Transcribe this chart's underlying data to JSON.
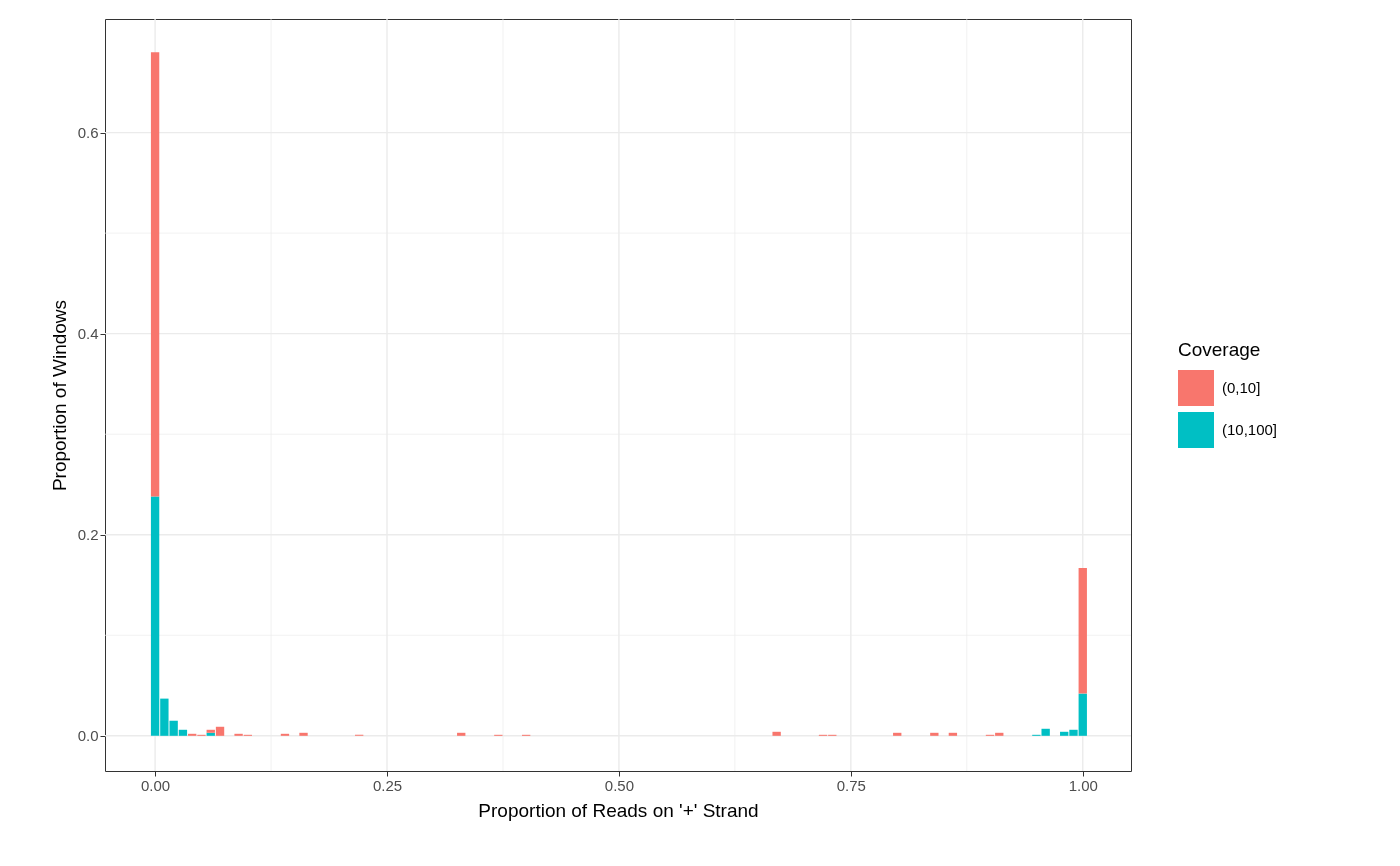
{
  "chart_data": {
    "type": "bar",
    "xlabel": "Proportion of Reads on '+' Strand",
    "ylabel": "Proportion of Windows",
    "legend_title": "Coverage",
    "stacked": true,
    "legend": "right",
    "grid": true,
    "x": [
      0,
      0.01,
      0.02,
      0.03,
      0.04,
      0.05,
      0.06,
      0.07,
      0.08,
      0.09,
      0.1,
      0.11,
      0.12,
      0.13,
      0.14,
      0.15,
      0.16,
      0.17,
      0.18,
      0.19,
      0.2,
      0.21,
      0.22,
      0.23,
      0.24,
      0.25,
      0.26,
      0.27,
      0.28,
      0.29,
      0.3,
      0.31,
      0.32,
      0.33,
      0.34,
      0.35,
      0.36,
      0.37,
      0.38,
      0.39,
      0.4,
      0.41,
      0.42,
      0.43,
      0.44,
      0.45,
      0.46,
      0.47,
      0.48,
      0.49,
      0.5,
      0.51,
      0.52,
      0.53,
      0.54,
      0.55,
      0.56,
      0.57,
      0.58,
      0.59,
      0.6,
      0.61,
      0.62,
      0.63,
      0.64,
      0.65,
      0.66,
      0.67,
      0.68,
      0.69,
      0.7,
      0.71,
      0.72,
      0.73,
      0.74,
      0.75,
      0.76,
      0.77,
      0.78,
      0.79,
      0.8,
      0.81,
      0.82,
      0.83,
      0.84,
      0.85,
      0.86,
      0.87,
      0.88,
      0.89,
      0.9,
      0.91,
      0.92,
      0.93,
      0.94,
      0.95,
      0.96,
      0.97,
      0.98,
      0.99,
      1
    ],
    "series": [
      {
        "name": "(10,100]",
        "color": "#00bfc4",
        "values": [
          0.238,
          0.037,
          0.015,
          0.006,
          0,
          0,
          0.003,
          0,
          0,
          0,
          0,
          0,
          0,
          0,
          0,
          0,
          0,
          0,
          0,
          0,
          0,
          0,
          0,
          0,
          0,
          0,
          0,
          0,
          0,
          0,
          0,
          0,
          0,
          0,
          0,
          0,
          0,
          0,
          0,
          0,
          0,
          0,
          0,
          0,
          0,
          0,
          0,
          0,
          0,
          0,
          0,
          0,
          0,
          0,
          0,
          0,
          0,
          0,
          0,
          0,
          0,
          0,
          0,
          0,
          0,
          0,
          0,
          0,
          0,
          0,
          0,
          0,
          0,
          0,
          0,
          0,
          0,
          0,
          0,
          0,
          0,
          0,
          0,
          0,
          0,
          0,
          0,
          0,
          0,
          0,
          0,
          0,
          0,
          0,
          0,
          0.001,
          0.007,
          0,
          0.004,
          0.006,
          0.042
        ]
      },
      {
        "name": "(0,10]",
        "color": "#f8766d",
        "values": [
          0.442,
          0,
          0,
          0,
          0.002,
          0.001,
          0.003,
          0.009,
          0,
          0.002,
          0.001,
          0,
          0,
          0,
          0.002,
          0,
          0.003,
          0,
          0,
          0,
          0,
          0,
          0.001,
          0,
          0,
          0,
          0,
          0,
          0,
          0,
          0,
          0,
          0,
          0.003,
          0,
          0,
          0,
          0.001,
          0,
          0,
          0.001,
          0,
          0,
          0,
          0,
          0,
          0,
          0,
          0,
          0,
          0,
          0,
          0,
          0,
          0,
          0,
          0,
          0,
          0,
          0,
          0,
          0,
          0,
          0,
          0,
          0,
          0,
          0.004,
          0,
          0,
          0,
          0,
          0.001,
          0.001,
          0,
          0,
          0,
          0,
          0,
          0,
          0.003,
          0,
          0,
          0,
          0.003,
          0,
          0.003,
          0,
          0,
          0,
          0.001,
          0.003,
          0,
          0,
          0,
          0,
          0,
          0,
          0,
          0,
          0.125
        ]
      }
    ],
    "xlim": [
      -0.054,
      1.052
    ],
    "ylim": [
      -0.035,
      0.713
    ],
    "xticks": [
      {
        "value": 0,
        "label": "0.00"
      },
      {
        "value": 0.125,
        "label": null
      },
      {
        "value": 0.25,
        "label": "0.25"
      },
      {
        "value": 0.375,
        "label": null
      },
      {
        "value": 0.5,
        "label": "0.50"
      },
      {
        "value": 0.625,
        "label": null
      },
      {
        "value": 0.75,
        "label": "0.75"
      },
      {
        "value": 0.875,
        "label": null
      },
      {
        "value": 1,
        "label": "1.00"
      }
    ],
    "yticks": [
      {
        "value": 0,
        "label": "0.0"
      },
      {
        "value": 0.1,
        "label": null
      },
      {
        "value": 0.2,
        "label": "0.2"
      },
      {
        "value": 0.3,
        "label": null
      },
      {
        "value": 0.4,
        "label": "0.4"
      },
      {
        "value": 0.5,
        "label": null
      },
      {
        "value": 0.6,
        "label": "0.6"
      }
    ]
  }
}
